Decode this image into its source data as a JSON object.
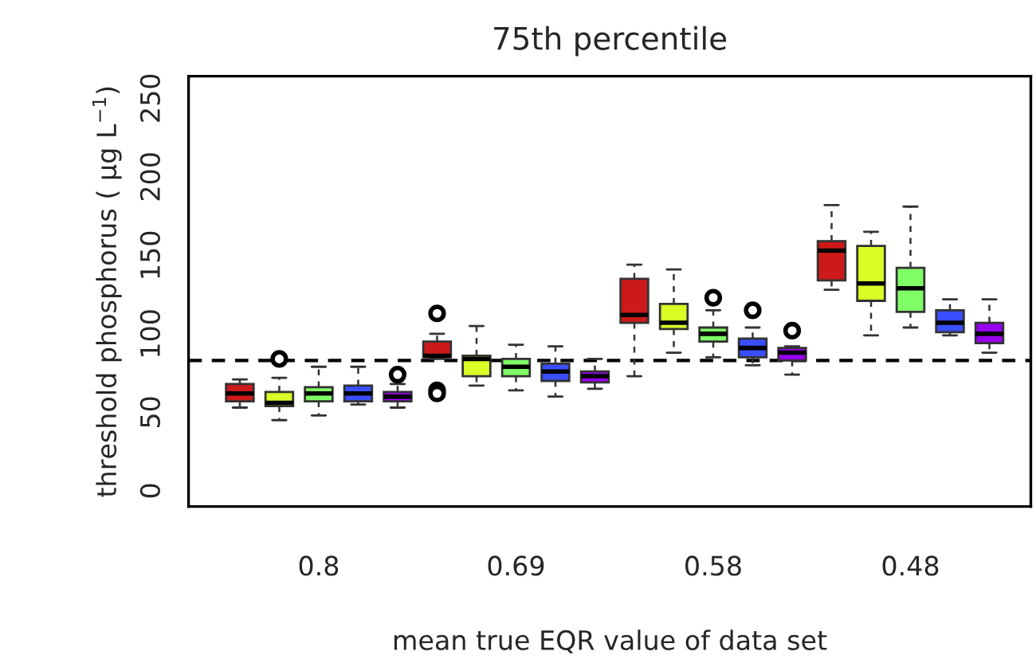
{
  "chart_data": {
    "type": "box",
    "title": "75th percentile",
    "xlabel": "mean true EQR value of data set",
    "ylabel": "threshold phosphorus ( µg L$^{−1}$)",
    "categories": [
      "0.8",
      "0.69",
      "0.58",
      "0.48"
    ],
    "ylim": [
      -10,
      264
    ],
    "yticks": [
      0,
      50,
      100,
      150,
      200,
      250
    ],
    "grid": false,
    "ref_lines": [
      {
        "axis": "y",
        "value": 83,
        "color": "#000000",
        "line_style": "dashed"
      }
    ],
    "series": [
      {
        "color": "#cc1a1a",
        "boxes": [
          {
            "low": 53,
            "q1": 57,
            "median": 62,
            "q3": 68,
            "high": 71
          },
          {
            "low": 84,
            "q1": 85,
            "median": 86,
            "q3": 95,
            "high": 100,
            "outliers": [
              113,
              64,
              62
            ]
          },
          {
            "low": 73,
            "q1": 107,
            "median": 112,
            "q3": 135,
            "high": 144
          },
          {
            "low": 128,
            "q1": 134,
            "median": 153,
            "q3": 159,
            "high": 182
          }
        ]
      },
      {
        "color": "#d9ff26",
        "boxes": [
          {
            "low": 45,
            "q1": 54,
            "median": 56,
            "q3": 63,
            "high": 72,
            "outliers": [
              84
            ]
          },
          {
            "low": 67,
            "q1": 73,
            "median": 84,
            "q3": 86,
            "high": 105
          },
          {
            "low": 88,
            "q1": 103,
            "median": 107,
            "q3": 119,
            "high": 141
          },
          {
            "low": 99,
            "q1": 121,
            "median": 132,
            "q3": 156,
            "high": 165
          }
        ]
      },
      {
        "color": "#80ff66",
        "boxes": [
          {
            "low": 48,
            "q1": 57,
            "median": 62,
            "q3": 66,
            "high": 79
          },
          {
            "low": 64,
            "q1": 73,
            "median": 79,
            "q3": 84,
            "high": 93
          },
          {
            "low": 85,
            "q1": 95,
            "median": 100,
            "q3": 104,
            "high": 115,
            "outliers": [
              123
            ]
          },
          {
            "low": 104,
            "q1": 114,
            "median": 129,
            "q3": 142,
            "high": 181
          }
        ]
      },
      {
        "color": "#3a4fff",
        "boxes": [
          {
            "low": 55,
            "q1": 57,
            "median": 62,
            "q3": 67,
            "high": 79
          },
          {
            "low": 60,
            "q1": 70,
            "median": 76,
            "q3": 81,
            "high": 92
          },
          {
            "low": 80,
            "q1": 85,
            "median": 91,
            "q3": 97,
            "high": 104,
            "outliers": [
              115
            ]
          },
          {
            "low": 99,
            "q1": 101,
            "median": 107,
            "q3": 115,
            "high": 122
          }
        ]
      },
      {
        "color": "#9900ee",
        "boxes": [
          {
            "low": 53,
            "q1": 57,
            "median": 60,
            "q3": 63,
            "high": 68,
            "outliers": [
              74
            ]
          },
          {
            "low": 65,
            "q1": 69,
            "median": 73,
            "q3": 76,
            "high": 84
          },
          {
            "low": 74,
            "q1": 83,
            "median": 88,
            "q3": 91,
            "high": 92,
            "outliers": [
              102
            ]
          },
          {
            "low": 88,
            "q1": 94,
            "median": 100,
            "q3": 107,
            "high": 122
          }
        ]
      }
    ]
  }
}
